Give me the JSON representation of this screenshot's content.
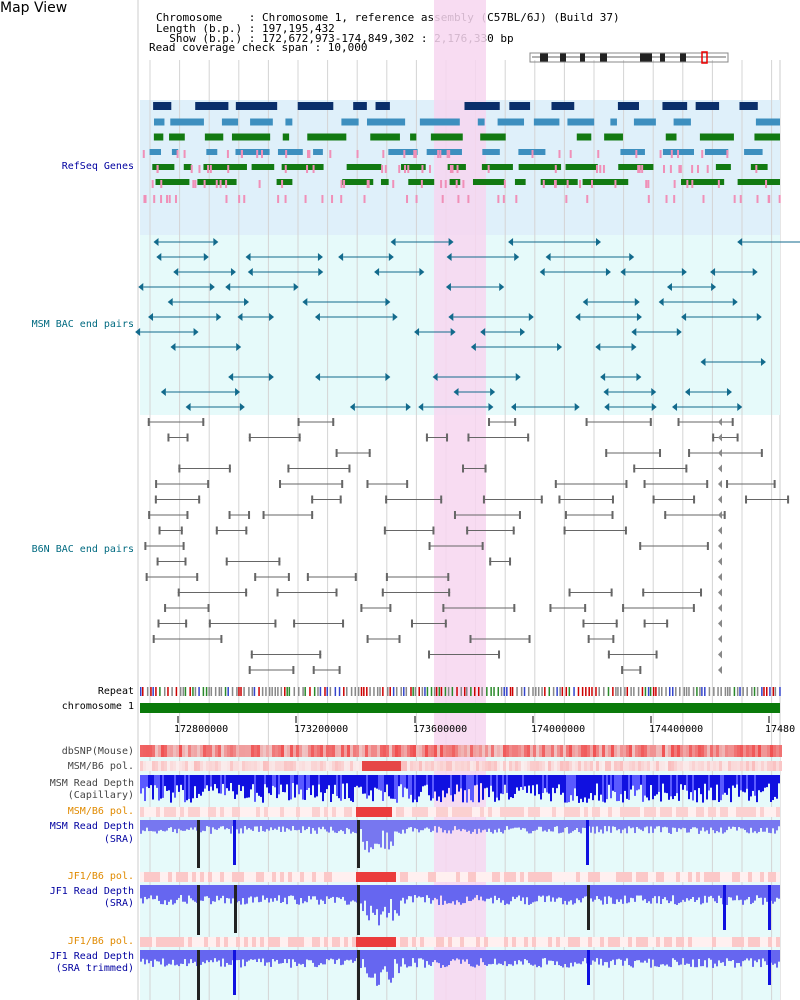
{
  "header": {
    "title": "Map View",
    "chromosome_line": "Chromosome    : Chromosome 1, reference assembly (C57BL/6J) (Build 37)",
    "length_line": "Length (b.p.) : 197,195,432",
    "show_line": "  Show (b.p.) : 172,672,973-174,849,302 : 2,176,330 bp",
    "coverage_line": "Read coverage check span : 10,000"
  },
  "tracks": {
    "refseq": "RefSeq Genes",
    "msm_bac": "MSM BAC end pairs",
    "b6n_bac": "B6N BAC end pairs",
    "repeat": "Repeat",
    "chromosome": "chromosome 1",
    "dbsnp": "dbSNP(Mouse)",
    "msm_b6_pol_1": "MSM/B6 pol.",
    "msm_read_depth_cap_1": "MSM Read Depth",
    "msm_read_depth_cap_2": "(Capillary)",
    "msm_b6_pol_2": "MSM/B6 pol.",
    "msm_read_depth_sra_1": "MSM Read Depth",
    "msm_read_depth_sra_2": "(SRA)",
    "jf1_b6_pol_1": "JF1/B6 pol.",
    "jf1_read_depth_sra_1": "JF1 Read Depth",
    "jf1_read_depth_sra_2": "(SRA)",
    "jf1_b6_pol_2": "JF1/B6 pol.",
    "jf1_read_depth_trim_1": "JF1 Read Depth",
    "jf1_read_depth_trim_2": "(SRA trimmed)"
  },
  "axis": {
    "ticks": [
      "172800000",
      "173200000",
      "173600000",
      "174000000",
      "174400000",
      "17480"
    ]
  },
  "colors": {
    "gene_dark": "#0a2f6b",
    "gene_mid": "#3d8fbf",
    "gene_green": "#127a12",
    "msm_bac": "#126a8c",
    "b6n_bac": "#666666",
    "highlight": "#f7d6f0",
    "label_blue": "#0000a0",
    "label_teal": "#006a80",
    "label_orange": "#e08a00"
  }
}
